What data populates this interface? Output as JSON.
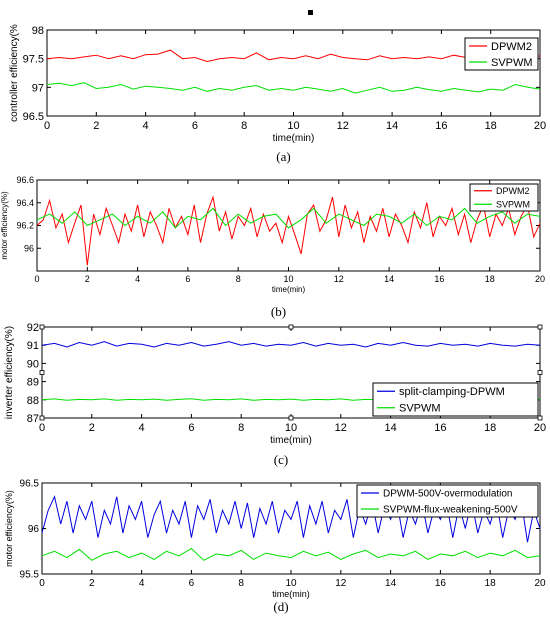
{
  "colors": {
    "red": "#ff0000",
    "green": "#00e000",
    "blue": "#0000e0",
    "axis": "#000000"
  },
  "chart_data": [
    {
      "type": "line",
      "panel_label": "(a)",
      "xlabel": "time(min)",
      "ylabel": "controller efficiency(%",
      "xlim": [
        0,
        20
      ],
      "ylim": [
        96.5,
        98
      ],
      "xticks": [
        "0",
        "2",
        "4",
        "6",
        "8",
        "10",
        "12",
        "14",
        "16",
        "18",
        "20"
      ],
      "yticks": [
        "96.5",
        "97",
        "97.5",
        "98"
      ],
      "legend_position": "top-right",
      "series": [
        {
          "name": "DPWM2",
          "color": "#ff0000",
          "x": [
            0,
            0.5,
            1,
            1.5,
            2,
            2.5,
            3,
            3.5,
            4,
            4.5,
            5,
            5.5,
            6,
            6.5,
            7,
            7.5,
            8,
            8.5,
            9,
            9.5,
            10,
            10.5,
            11,
            11.5,
            12,
            12.5,
            13,
            13.5,
            14,
            14.5,
            15,
            15.5,
            16,
            16.5,
            17,
            17.5,
            18,
            18.5,
            19,
            19.5,
            20
          ],
          "values": [
            97.5,
            97.52,
            97.5,
            97.53,
            97.56,
            97.5,
            97.55,
            97.5,
            97.57,
            97.58,
            97.65,
            97.5,
            97.52,
            97.45,
            97.5,
            97.52,
            97.5,
            97.6,
            97.48,
            97.52,
            97.5,
            97.55,
            97.5,
            97.58,
            97.52,
            97.5,
            97.48,
            97.55,
            97.5,
            97.52,
            97.5,
            97.53,
            97.5,
            97.56,
            97.52,
            97.5,
            97.5,
            97.45,
            97.52,
            97.5,
            97.55
          ]
        },
        {
          "name": "SVPWM",
          "color": "#00e000",
          "x": [
            0,
            0.5,
            1,
            1.5,
            2,
            2.5,
            3,
            3.5,
            4,
            4.5,
            5,
            5.5,
            6,
            6.5,
            7,
            7.5,
            8,
            8.5,
            9,
            9.5,
            10,
            10.5,
            11,
            11.5,
            12,
            12.5,
            13,
            13.5,
            14,
            14.5,
            15,
            15.5,
            16,
            16.5,
            17,
            17.5,
            18,
            18.5,
            19,
            19.5,
            20
          ],
          "values": [
            97.05,
            97.07,
            97.03,
            97.08,
            96.98,
            97.0,
            97.05,
            96.97,
            97.02,
            97.0,
            96.98,
            96.95,
            97.0,
            96.93,
            96.98,
            96.95,
            97.0,
            97.03,
            96.95,
            96.98,
            96.95,
            97.0,
            96.97,
            96.93,
            96.98,
            96.9,
            96.95,
            97.0,
            96.93,
            96.95,
            97.0,
            96.96,
            96.93,
            96.98,
            96.95,
            96.92,
            96.97,
            96.95,
            97.05,
            97.0,
            96.97
          ]
        }
      ]
    },
    {
      "type": "line",
      "panel_label": "(b)",
      "xlabel": "time(min)",
      "ylabel": "motor efficiency(%)",
      "xlim": [
        0,
        20
      ],
      "ylim": [
        95.8,
        96.6
      ],
      "xticks": [
        "0",
        "2",
        "4",
        "6",
        "8",
        "10",
        "12",
        "14",
        "16",
        "18",
        "20"
      ],
      "yticks": [
        "96",
        "96.2",
        "96.4",
        "96.6"
      ],
      "legend_position": "top-right",
      "series": [
        {
          "name": "DPWM2",
          "color": "#ff0000",
          "x": [
            0,
            0.25,
            0.5,
            0.75,
            1,
            1.25,
            1.5,
            1.75,
            2,
            2.25,
            2.5,
            2.75,
            3,
            3.25,
            3.5,
            3.75,
            4,
            4.25,
            4.5,
            4.75,
            5,
            5.25,
            5.5,
            5.75,
            6,
            6.25,
            6.5,
            6.75,
            7,
            7.25,
            7.5,
            7.75,
            8,
            8.25,
            8.5,
            8.75,
            9,
            9.25,
            9.5,
            9.75,
            10,
            10.25,
            10.5,
            10.75,
            11,
            11.25,
            11.5,
            11.75,
            12,
            12.25,
            12.5,
            12.75,
            13,
            13.25,
            13.5,
            13.75,
            14,
            14.25,
            14.5,
            14.75,
            15,
            15.25,
            15.5,
            15.75,
            16,
            16.25,
            16.5,
            16.75,
            17,
            17.25,
            17.5,
            17.75,
            18,
            18.25,
            18.5,
            18.75,
            19,
            19.25,
            19.5,
            19.75,
            20
          ],
          "values": [
            96.2,
            96.25,
            96.42,
            96.18,
            96.3,
            96.05,
            96.22,
            96.38,
            95.85,
            96.3,
            96.12,
            96.35,
            96.2,
            96.05,
            96.3,
            96.15,
            96.38,
            96.1,
            96.32,
            96.2,
            96.05,
            96.35,
            96.18,
            96.28,
            96.12,
            96.38,
            96.05,
            96.3,
            96.45,
            96.15,
            96.32,
            96.08,
            96.28,
            96.2,
            96.35,
            96.1,
            96.3,
            96.15,
            96.22,
            96.05,
            96.28,
            96.12,
            95.95,
            96.3,
            96.38,
            96.15,
            96.25,
            96.45,
            96.1,
            96.38,
            96.18,
            96.32,
            96.05,
            96.28,
            96.15,
            96.35,
            96.1,
            96.3,
            96.2,
            96.05,
            96.32,
            96.18,
            96.4,
            96.1,
            96.28,
            96.2,
            96.35,
            96.12,
            96.3,
            96.05,
            96.25,
            96.38,
            96.1,
            96.3,
            96.2,
            96.35,
            96.12,
            96.28,
            96.38,
            96.1,
            96.22
          ]
        },
        {
          "name": "SVPWM",
          "color": "#00e000",
          "x": [
            0,
            0.5,
            1,
            1.5,
            2,
            2.5,
            3,
            3.5,
            4,
            4.5,
            5,
            5.5,
            6,
            6.5,
            7,
            7.5,
            8,
            8.5,
            9,
            9.5,
            10,
            10.5,
            11,
            11.5,
            12,
            12.5,
            13,
            13.5,
            14,
            14.5,
            15,
            15.5,
            16,
            16.5,
            17,
            17.5,
            18,
            18.5,
            19,
            19.5,
            20
          ],
          "values": [
            96.25,
            96.3,
            96.22,
            96.32,
            96.2,
            96.25,
            96.3,
            96.2,
            96.28,
            96.22,
            96.32,
            96.18,
            96.28,
            96.25,
            96.35,
            96.2,
            96.3,
            96.22,
            96.28,
            96.3,
            96.18,
            96.25,
            96.35,
            96.22,
            96.3,
            96.25,
            96.2,
            96.3,
            96.28,
            96.22,
            96.3,
            96.2,
            96.28,
            96.25,
            96.35,
            96.22,
            96.28,
            96.32,
            96.22,
            96.3,
            96.28
          ]
        }
      ]
    },
    {
      "type": "line",
      "panel_label": "(c)",
      "xlabel": "time(min)",
      "ylabel": "inverter efficiency(%)",
      "xlim": [
        0,
        20
      ],
      "ylim": [
        87,
        92
      ],
      "xticks": [
        "0",
        "2",
        "4",
        "6",
        "8",
        "10",
        "12",
        "14",
        "16",
        "18",
        "20"
      ],
      "yticks": [
        "87",
        "88",
        "89",
        "90",
        "91",
        "92"
      ],
      "legend_position": "bottom-right",
      "series": [
        {
          "name": "split-clamping-DPWM",
          "color": "#0000e0",
          "x": [
            0,
            0.5,
            1,
            1.5,
            2,
            2.5,
            3,
            3.5,
            4,
            4.5,
            5,
            5.5,
            6,
            6.5,
            7,
            7.5,
            8,
            8.5,
            9,
            9.5,
            10,
            10.5,
            11,
            11.5,
            12,
            12.5,
            13,
            13.5,
            14,
            14.5,
            15,
            15.5,
            16,
            16.5,
            17,
            17.5,
            18,
            18.5,
            19,
            19.5,
            20
          ],
          "values": [
            91.0,
            91.1,
            90.9,
            91.15,
            91.0,
            91.2,
            90.95,
            91.1,
            91.05,
            90.9,
            91.1,
            91.0,
            91.15,
            90.95,
            91.05,
            91.2,
            91.0,
            91.1,
            90.95,
            91.05,
            91.0,
            91.15,
            90.95,
            91.1,
            91.0,
            91.05,
            90.9,
            91.1,
            91.0,
            91.15,
            91.0,
            90.95,
            91.1,
            91.0,
            91.05,
            90.95,
            91.1,
            91.0,
            90.95,
            91.05,
            91.0
          ]
        },
        {
          "name": "SVPWM",
          "color": "#00e000",
          "x": [
            0,
            0.5,
            1,
            1.5,
            2,
            2.5,
            3,
            3.5,
            4,
            4.5,
            5,
            5.5,
            6,
            6.5,
            7,
            7.5,
            8,
            8.5,
            9,
            9.5,
            10,
            10.5,
            11,
            11.5,
            12,
            12.5,
            13,
            13.5,
            14,
            14.5,
            15,
            15.5,
            16,
            16.5,
            17,
            17.5,
            18,
            18.5,
            19,
            19.5,
            20
          ],
          "values": [
            88.0,
            88.05,
            87.98,
            88.02,
            88.0,
            88.05,
            87.97,
            88.02,
            88.0,
            88.04,
            87.98,
            88.02,
            88.06,
            87.98,
            88.02,
            88.0,
            88.05,
            87.97,
            88.02,
            88.0,
            88.04,
            87.98,
            88.02,
            88.0,
            88.05,
            87.98,
            88.02,
            88.0,
            88.04,
            87.98,
            88.02,
            88.0,
            88.05,
            87.97,
            88.02,
            88.0,
            88.04,
            87.98,
            88.02,
            88.0,
            88.02
          ]
        }
      ]
    },
    {
      "type": "line",
      "panel_label": "(d)",
      "xlabel": "time(min)",
      "ylabel": "motor efficiency(%)",
      "xlim": [
        0,
        20
      ],
      "ylim": [
        95.5,
        96.5
      ],
      "xticks": [
        "0",
        "2",
        "4",
        "6",
        "8",
        "10",
        "12",
        "14",
        "16",
        "18",
        "20"
      ],
      "yticks": [
        "95.5",
        "96",
        "96.5"
      ],
      "legend_position": "top-right",
      "series": [
        {
          "name": "DPWM-500V-overmodulation",
          "color": "#0000e0",
          "x": [
            0,
            0.25,
            0.5,
            0.75,
            1,
            1.25,
            1.5,
            1.75,
            2,
            2.25,
            2.5,
            2.75,
            3,
            3.25,
            3.5,
            3.75,
            4,
            4.25,
            4.5,
            4.75,
            5,
            5.25,
            5.5,
            5.75,
            6,
            6.25,
            6.5,
            6.75,
            7,
            7.25,
            7.5,
            7.75,
            8,
            8.25,
            8.5,
            8.75,
            9,
            9.25,
            9.5,
            9.75,
            10,
            10.25,
            10.5,
            10.75,
            11,
            11.25,
            11.5,
            11.75,
            12,
            12.25,
            12.5,
            12.75,
            13,
            13.25,
            13.5,
            13.75,
            14,
            14.25,
            14.5,
            14.75,
            15,
            15.25,
            15.5,
            15.75,
            16,
            16.25,
            16.5,
            16.75,
            17,
            17.25,
            17.5,
            17.75,
            18,
            18.25,
            18.5,
            18.75,
            19,
            19.25,
            19.5,
            19.75,
            20
          ],
          "values": [
            95.95,
            96.2,
            96.35,
            96.05,
            96.3,
            95.95,
            96.25,
            96.1,
            96.3,
            95.9,
            96.2,
            96.05,
            96.35,
            95.95,
            96.25,
            96.1,
            96.3,
            95.9,
            96.15,
            96.3,
            95.95,
            96.2,
            96.05,
            96.3,
            95.9,
            96.25,
            96.1,
            96.32,
            95.95,
            96.2,
            96.05,
            96.3,
            96.0,
            96.28,
            95.9,
            96.22,
            96.05,
            96.3,
            95.95,
            96.2,
            96.1,
            96.3,
            95.9,
            96.25,
            96.05,
            96.3,
            95.95,
            96.2,
            96.1,
            96.32,
            95.9,
            96.22,
            96.05,
            96.3,
            95.95,
            96.25,
            96.1,
            96.3,
            95.9,
            96.2,
            96.05,
            96.3,
            95.95,
            96.22,
            96.1,
            96.28,
            95.9,
            96.25,
            96.0,
            96.3,
            95.95,
            96.2,
            96.05,
            96.3,
            95.9,
            96.22,
            96.1,
            96.3,
            95.85,
            96.2,
            96.0
          ]
        },
        {
          "name": "SVPWM-flux-weakening-500V",
          "color": "#00e000",
          "x": [
            0,
            0.5,
            1,
            1.5,
            2,
            2.5,
            3,
            3.5,
            4,
            4.5,
            5,
            5.5,
            6,
            6.5,
            7,
            7.5,
            8,
            8.5,
            9,
            9.5,
            10,
            10.5,
            11,
            11.5,
            12,
            12.5,
            13,
            13.5,
            14,
            14.5,
            15,
            15.5,
            16,
            16.5,
            17,
            17.5,
            18,
            18.5,
            19,
            19.5,
            20
          ],
          "values": [
            95.7,
            95.75,
            95.68,
            95.77,
            95.65,
            95.72,
            95.75,
            95.68,
            95.73,
            95.66,
            95.75,
            95.7,
            95.78,
            95.65,
            95.72,
            95.7,
            95.76,
            95.66,
            95.73,
            95.7,
            95.68,
            95.75,
            95.7,
            95.74,
            95.66,
            95.72,
            95.76,
            95.68,
            95.72,
            95.7,
            95.75,
            95.66,
            95.72,
            95.7,
            95.75,
            95.68,
            95.73,
            95.7,
            95.76,
            95.68,
            95.7
          ]
        }
      ]
    }
  ]
}
